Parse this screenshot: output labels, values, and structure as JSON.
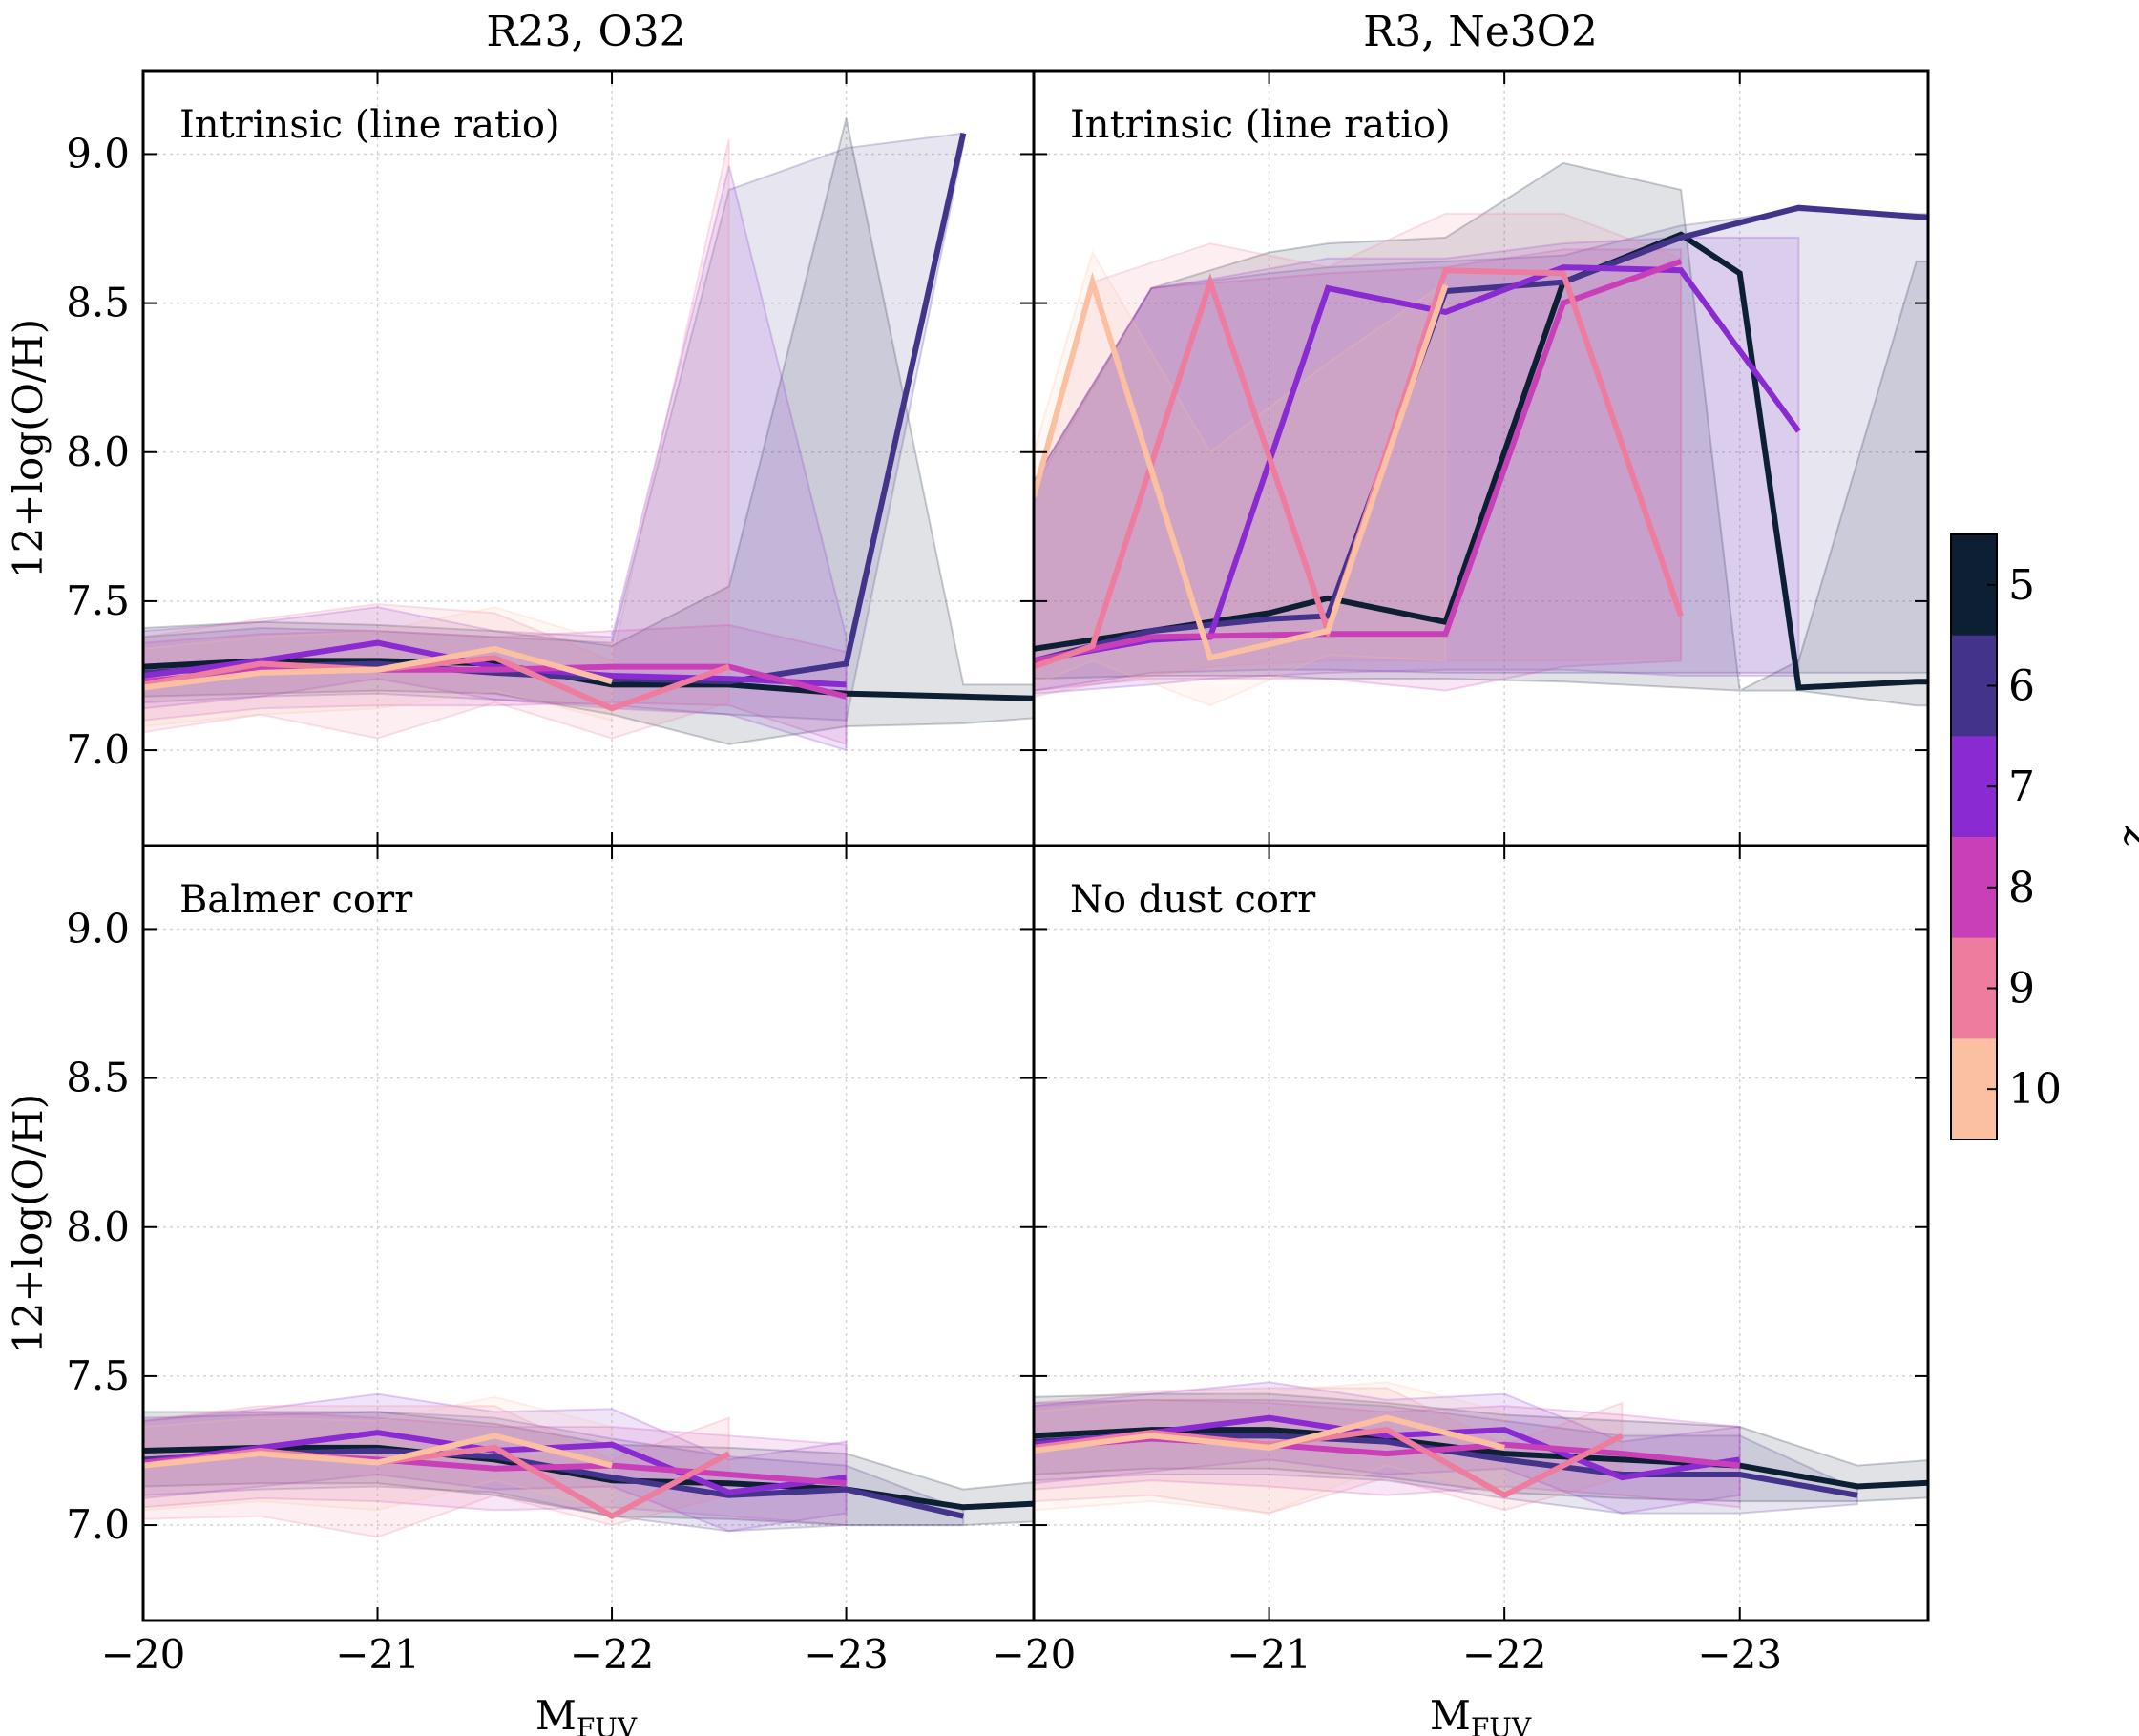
{
  "chart_data": {
    "type": "line",
    "column_titles": [
      "R23, O32",
      "R3, Ne3O2"
    ],
    "xlabel_main": "M",
    "xlabel_sub": "FUV",
    "ylabel": "12+log(O/H)",
    "xlim": [
      -20,
      -23.8
    ],
    "ylim": [
      6.68,
      9.28
    ],
    "xticks": [
      -20,
      -21,
      -22,
      -23
    ],
    "xtick_labels": [
      "−20",
      "−21",
      "−22",
      "−23"
    ],
    "xtick_labels_right_first": "−20",
    "yticks": [
      7.0,
      7.5,
      8.0,
      8.5,
      9.0
    ],
    "ytick_labels": [
      "7.0",
      "7.5",
      "8.0",
      "8.5",
      "9.0"
    ],
    "grid": true,
    "colorbar": {
      "label": "z",
      "ticks": [
        "5",
        "6",
        "7",
        "8",
        "9",
        "10"
      ],
      "colors": [
        "#0c1f33",
        "#43338a",
        "#8a2bd1",
        "#c93fb8",
        "#ee7c9e",
        "#fbbfa2"
      ]
    },
    "panels": [
      {
        "label": "Intrinsic (line ratio)",
        "series": [
          {
            "z": "5",
            "x": [
              -20,
              -20.5,
              -21,
              -21.5,
              -22,
              -22.5,
              -23,
              -23.5,
              -24
            ],
            "y": [
              7.28,
              7.3,
              7.3,
              7.29,
              7.22,
              7.22,
              7.19,
              7.18,
              7.17
            ],
            "lo": [
              7.18,
              7.19,
              7.2,
              7.19,
              7.12,
              7.02,
              7.08,
              7.09,
              7.12
            ],
            "hi": [
              7.41,
              7.43,
              7.42,
              7.4,
              7.35,
              7.55,
              9.12,
              7.22,
              7.22
            ]
          },
          {
            "z": "6",
            "x": [
              -20,
              -20.5,
              -21,
              -21.5,
              -22,
              -22.5,
              -23,
              -23.5
            ],
            "y": [
              7.26,
              7.28,
              7.29,
              7.26,
              7.24,
              7.23,
              7.29,
              9.07
            ],
            "lo": [
              7.16,
              7.18,
              7.19,
              7.17,
              7.15,
              7.12,
              7.1,
              9.03
            ],
            "hi": [
              7.38,
              7.41,
              7.4,
              7.38,
              7.36,
              8.88,
              9.02,
              9.07
            ]
          },
          {
            "z": "7",
            "x": [
              -20,
              -20.5,
              -21,
              -21.5,
              -22,
              -22.5,
              -23
            ],
            "y": [
              7.25,
              7.3,
              7.36,
              7.28,
              7.25,
              7.24,
              7.22
            ],
            "lo": [
              7.14,
              7.18,
              7.24,
              7.17,
              7.14,
              7.12,
              7.0
            ],
            "hi": [
              7.4,
              7.43,
              7.48,
              7.4,
              7.38,
              8.96,
              7.38
            ]
          },
          {
            "z": "8",
            "x": [
              -20,
              -20.5,
              -21,
              -21.5,
              -22,
              -22.5,
              -23
            ],
            "y": [
              7.23,
              7.27,
              7.27,
              7.27,
              7.28,
              7.28,
              7.18
            ],
            "lo": [
              7.1,
              7.14,
              7.15,
              7.15,
              7.16,
              7.15,
              7.02
            ],
            "hi": [
              7.36,
              7.39,
              7.4,
              7.38,
              7.4,
              7.42,
              7.33
            ]
          },
          {
            "z": "9",
            "x": [
              -20,
              -20.5,
              -21,
              -21.5,
              -22,
              -22.5
            ],
            "y": [
              7.22,
              7.29,
              7.27,
              7.31,
              7.14,
              7.28
            ],
            "lo": [
              7.06,
              7.12,
              7.04,
              7.16,
              7.04,
              7.16
            ],
            "hi": [
              7.38,
              7.44,
              7.49,
              7.46,
              7.3,
              9.05
            ]
          },
          {
            "z": "10",
            "x": [
              -20,
              -20.5,
              -21,
              -21.5,
              -22
            ],
            "y": [
              7.21,
              7.26,
              7.27,
              7.34,
              7.23
            ],
            "lo": [
              7.08,
              7.12,
              7.14,
              7.2,
              7.1
            ],
            "hi": [
              7.34,
              7.38,
              7.4,
              7.48,
              7.36
            ]
          }
        ]
      },
      {
        "label": "Intrinsic (line ratio)",
        "series": [
          {
            "z": "5",
            "x": [
              -20,
              -20.5,
              -21,
              -21.25,
              -21.75,
              -22.25,
              -22.75,
              -23,
              -23.25,
              -23.75,
              -24
            ],
            "y": [
              7.34,
              7.4,
              7.46,
              7.51,
              7.43,
              8.57,
              8.73,
              8.6,
              7.21,
              7.23,
              7.23
            ],
            "lo": [
              7.24,
              7.25,
              7.25,
              7.24,
              7.24,
              7.23,
              7.21,
              7.2,
              7.2,
              7.15,
              7.15
            ],
            "hi": [
              7.9,
              8.55,
              8.67,
              8.7,
              8.72,
              8.97,
              8.88,
              7.2,
              7.3,
              8.64,
              8.64
            ]
          },
          {
            "z": "6",
            "x": [
              -20,
              -20.5,
              -21,
              -21.25,
              -21.75,
              -22.25,
              -22.75,
              -23.25,
              -23.75,
              -24
            ],
            "y": [
              7.3,
              7.4,
              7.44,
              7.45,
              8.54,
              8.57,
              8.72,
              8.82,
              8.79,
              8.78
            ],
            "lo": [
              7.2,
              7.26,
              7.27,
              7.27,
              7.26,
              7.26,
              7.26,
              7.26,
              7.26,
              7.26
            ],
            "hi": [
              7.9,
              8.55,
              8.6,
              8.62,
              8.64,
              8.66,
              8.76,
              8.81,
              8.8,
              8.8
            ]
          },
          {
            "z": "7",
            "x": [
              -20,
              -20.5,
              -20.75,
              -21.25,
              -21.75,
              -22.25,
              -22.75,
              -23.25
            ],
            "y": [
              7.3,
              7.37,
              7.38,
              8.55,
              8.47,
              8.62,
              8.61,
              8.07
            ],
            "lo": [
              7.19,
              7.22,
              7.24,
              7.26,
              7.27,
              7.27,
              7.25,
              7.25
            ],
            "hi": [
              7.9,
              8.55,
              8.58,
              8.65,
              8.65,
              8.7,
              8.72,
              8.72
            ]
          },
          {
            "z": "8",
            "x": [
              -20,
              -20.5,
              -21.25,
              -21.75,
              -22.25,
              -22.75
            ],
            "y": [
              7.3,
              7.38,
              7.39,
              7.39,
              8.5,
              8.64
            ],
            "lo": [
              7.2,
              7.24,
              7.24,
              7.2,
              7.28,
              7.3
            ],
            "hi": [
              7.88,
              8.55,
              8.6,
              8.62,
              8.68,
              8.68
            ]
          },
          {
            "z": "9",
            "x": [
              -20,
              -20.25,
              -20.75,
              -21.25,
              -21.75,
              -22.25,
              -22.75
            ],
            "y": [
              7.28,
              7.35,
              8.57,
              7.4,
              8.61,
              8.6,
              7.45
            ],
            "lo": [
              7.18,
              7.22,
              7.28,
              7.3,
              7.3,
              7.3,
              7.31
            ],
            "hi": [
              7.88,
              8.57,
              8.7,
              8.62,
              8.8,
              8.8,
              8.65
            ]
          },
          {
            "z": "10",
            "x": [
              -20,
              -20.25,
              -20.75,
              -21.25,
              -21.75
            ],
            "y": [
              7.85,
              8.57,
              7.31,
              7.4,
              8.56
            ],
            "lo": [
              7.22,
              7.3,
              7.15,
              7.32,
              7.3
            ],
            "hi": [
              8.0,
              8.67,
              8.0,
              8.3,
              8.57
            ]
          }
        ]
      },
      {
        "label": "Balmer corr",
        "series": [
          {
            "z": "5",
            "x": [
              -20,
              -20.5,
              -21,
              -21.5,
              -22,
              -22.5,
              -23,
              -23.5,
              -24
            ],
            "y": [
              7.25,
              7.26,
              7.26,
              7.22,
              7.15,
              7.14,
              7.12,
              7.06,
              7.08
            ],
            "lo": [
              7.13,
              7.14,
              7.14,
              7.1,
              7.03,
              7.02,
              7.0,
              7.0,
              7.02
            ],
            "hi": [
              7.38,
              7.38,
              7.38,
              7.34,
              7.27,
              7.26,
              7.24,
              7.12,
              7.16
            ]
          },
          {
            "z": "6",
            "x": [
              -20,
              -20.5,
              -21,
              -21.5,
              -22,
              -22.5,
              -23,
              -23.5
            ],
            "y": [
              7.22,
              7.24,
              7.25,
              7.23,
              7.16,
              7.1,
              7.12,
              7.03
            ],
            "lo": [
              7.1,
              7.12,
              7.13,
              7.11,
              7.03,
              6.98,
              7.0,
              7.0
            ],
            "hi": [
              7.36,
              7.37,
              7.38,
              7.36,
              7.29,
              7.23,
              7.2,
              7.05
            ]
          },
          {
            "z": "7",
            "x": [
              -20,
              -20.5,
              -21,
              -21.5,
              -22,
              -22.5,
              -23
            ],
            "y": [
              7.21,
              7.26,
              7.31,
              7.25,
              7.27,
              7.11,
              7.16
            ],
            "lo": [
              7.09,
              7.13,
              7.17,
              7.12,
              7.13,
              6.98,
              7.04
            ],
            "hi": [
              7.35,
              7.39,
              7.44,
              7.38,
              7.39,
              7.22,
              7.28
            ]
          },
          {
            "z": "8",
            "x": [
              -20,
              -20.5,
              -21,
              -21.5,
              -22,
              -22.5,
              -23
            ],
            "y": [
              7.21,
              7.24,
              7.22,
              7.19,
              7.2,
              7.17,
              7.14
            ],
            "lo": [
              7.06,
              7.09,
              7.08,
              7.05,
              7.06,
              7.03,
              7.0
            ],
            "hi": [
              7.35,
              7.38,
              7.36,
              7.33,
              7.33,
              7.3,
              7.27
            ]
          },
          {
            "z": "9",
            "x": [
              -20,
              -20.5,
              -21,
              -21.5,
              -22,
              -22.5
            ],
            "y": [
              7.2,
              7.25,
              7.21,
              7.26,
              7.03,
              7.24
            ],
            "lo": [
              7.02,
              7.03,
              6.96,
              7.1,
              7.0,
              7.1
            ],
            "hi": [
              7.35,
              7.4,
              7.4,
              7.4,
              7.22,
              7.36
            ]
          },
          {
            "z": "10",
            "x": [
              -20,
              -20.5,
              -21,
              -21.5,
              -22
            ],
            "y": [
              7.2,
              7.24,
              7.21,
              7.3,
              7.2
            ],
            "lo": [
              7.05,
              7.08,
              7.05,
              7.15,
              7.05
            ],
            "hi": [
              7.33,
              7.36,
              7.35,
              7.43,
              7.33
            ]
          }
        ]
      },
      {
        "label": "No dust corr",
        "series": [
          {
            "z": "5",
            "x": [
              -20,
              -20.5,
              -21,
              -21.5,
              -22,
              -22.5,
              -23,
              -23.5,
              -24
            ],
            "y": [
              7.3,
              7.32,
              7.32,
              7.29,
              7.24,
              7.22,
              7.2,
              7.13,
              7.15
            ],
            "lo": [
              7.17,
              7.19,
              7.19,
              7.16,
              7.11,
              7.09,
              7.08,
              7.08,
              7.1
            ],
            "hi": [
              7.43,
              7.44,
              7.44,
              7.41,
              7.37,
              7.35,
              7.33,
              7.2,
              7.23
            ]
          },
          {
            "z": "6",
            "x": [
              -20,
              -20.5,
              -21,
              -21.5,
              -22,
              -22.5,
              -23,
              -23.5
            ],
            "y": [
              7.28,
              7.3,
              7.3,
              7.28,
              7.22,
              7.17,
              7.17,
              7.1
            ],
            "lo": [
              7.15,
              7.17,
              7.17,
              7.15,
              7.09,
              7.04,
              7.04,
              7.07
            ],
            "hi": [
              7.41,
              7.42,
              7.42,
              7.4,
              7.35,
              7.3,
              7.3,
              7.12
            ]
          },
          {
            "z": "7",
            "x": [
              -20,
              -20.5,
              -21,
              -21.5,
              -22,
              -22.5,
              -23
            ],
            "y": [
              7.27,
              7.31,
              7.36,
              7.3,
              7.32,
              7.16,
              7.22
            ],
            "lo": [
              7.14,
              7.18,
              7.22,
              7.17,
              7.19,
              7.04,
              7.1
            ],
            "hi": [
              7.4,
              7.44,
              7.48,
              7.42,
              7.44,
              7.28,
              7.33
            ]
          },
          {
            "z": "8",
            "x": [
              -20,
              -20.5,
              -21,
              -21.5,
              -22,
              -22.5,
              -23
            ],
            "y": [
              7.26,
              7.29,
              7.27,
              7.24,
              7.27,
              7.24,
              7.2
            ],
            "lo": [
              7.12,
              7.15,
              7.13,
              7.1,
              7.13,
              7.1,
              7.06
            ],
            "hi": [
              7.4,
              7.42,
              7.41,
              7.38,
              7.4,
              7.37,
              7.33
            ]
          },
          {
            "z": "9",
            "x": [
              -20,
              -20.5,
              -21,
              -21.5,
              -22,
              -22.5
            ],
            "y": [
              7.26,
              7.31,
              7.27,
              7.32,
              7.1,
              7.3
            ],
            "lo": [
              7.08,
              7.1,
              7.04,
              7.16,
              7.05,
              7.16
            ],
            "hi": [
              7.41,
              7.45,
              7.46,
              7.46,
              7.27,
              7.41
            ]
          },
          {
            "z": "10",
            "x": [
              -20,
              -20.5,
              -21,
              -21.5,
              -22
            ],
            "y": [
              7.25,
              7.3,
              7.26,
              7.36,
              7.26
            ],
            "lo": [
              7.05,
              7.08,
              7.04,
              7.2,
              7.1
            ],
            "hi": [
              7.38,
              7.42,
              7.45,
              7.48,
              7.38
            ]
          }
        ]
      }
    ]
  }
}
